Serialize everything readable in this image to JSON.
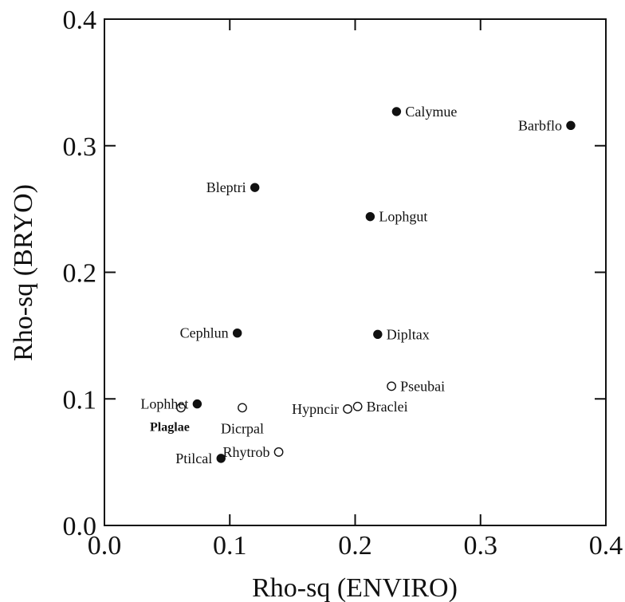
{
  "chart_data": {
    "type": "scatter",
    "title": "",
    "xlabel": "Rho-sq (ENVIRO)",
    "ylabel": "Rho-sq (BRYO)",
    "xlim": [
      0.0,
      0.4
    ],
    "ylim": [
      0.0,
      0.4
    ],
    "x_ticks": [
      "0.0",
      "0.1",
      "0.2",
      "0.3",
      "0.4"
    ],
    "y_ticks": [
      "0.0",
      "0.1",
      "0.2",
      "0.3",
      "0.4"
    ],
    "grid": false,
    "colors": {
      "filled": "#111111",
      "open_fill": "#ffffff",
      "stroke": "#111111"
    },
    "points": [
      {
        "label": "Calymue",
        "x": 0.233,
        "y": 0.327,
        "marker": "filled",
        "label_pos": "right"
      },
      {
        "label": "Barbflo",
        "x": 0.372,
        "y": 0.316,
        "marker": "filled",
        "label_pos": "left"
      },
      {
        "label": "Bleptri",
        "x": 0.12,
        "y": 0.267,
        "marker": "filled",
        "label_pos": "left"
      },
      {
        "label": "Lophgut",
        "x": 0.212,
        "y": 0.244,
        "marker": "filled",
        "label_pos": "right"
      },
      {
        "label": "Cephlun",
        "x": 0.106,
        "y": 0.152,
        "marker": "filled",
        "label_pos": "left"
      },
      {
        "label": "Dipltax",
        "x": 0.218,
        "y": 0.151,
        "marker": "filled",
        "label_pos": "right"
      },
      {
        "label": "Lophhet",
        "x": 0.074,
        "y": 0.096,
        "marker": "filled",
        "label_pos": "left"
      },
      {
        "label": "Ptilcal",
        "x": 0.093,
        "y": 0.053,
        "marker": "filled",
        "label_pos": "left"
      },
      {
        "label": "Pseubai",
        "x": 0.229,
        "y": 0.11,
        "marker": "open",
        "label_pos": "right"
      },
      {
        "label": "Braclei",
        "x": 0.202,
        "y": 0.094,
        "marker": "open",
        "label_pos": "right"
      },
      {
        "label": "Hypncir",
        "x": 0.194,
        "y": 0.092,
        "marker": "open",
        "label_pos": "left"
      },
      {
        "label": "Dicrpal",
        "x": 0.11,
        "y": 0.093,
        "marker": "open",
        "label_pos": "below"
      },
      {
        "label": "Plaglae",
        "x": 0.061,
        "y": 0.093,
        "marker": "open",
        "label_pos": "below-bold"
      },
      {
        "label": "Rhytrob",
        "x": 0.139,
        "y": 0.058,
        "marker": "open",
        "label_pos": "left"
      }
    ]
  }
}
